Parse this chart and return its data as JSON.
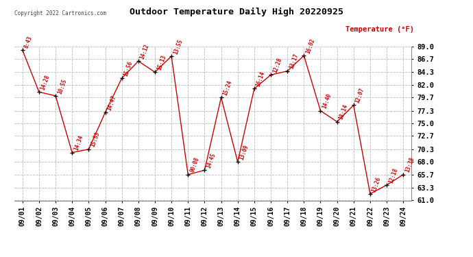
{
  "title": "Outdoor Temperature Daily High 20220925",
  "ylabel": "Temperature (°F)",
  "copyright": "Copyright 2022 Cartronics.com",
  "background_color": "#ffffff",
  "grid_color": "#bbbbbb",
  "line_color": "#cc0000",
  "marker_color": "#000000",
  "label_color": "#cc0000",
  "dates": [
    "09/01",
    "09/02",
    "09/03",
    "09/04",
    "09/05",
    "09/06",
    "09/07",
    "09/08",
    "09/09",
    "09/10",
    "09/11",
    "09/12",
    "09/13",
    "09/14",
    "09/15",
    "09/16",
    "09/17",
    "09/18",
    "09/19",
    "09/20",
    "09/21",
    "09/22",
    "09/23",
    "09/24"
  ],
  "temps": [
    88.3,
    80.7,
    80.0,
    69.7,
    70.3,
    77.0,
    83.2,
    86.3,
    84.3,
    87.2,
    65.7,
    66.5,
    79.7,
    68.0,
    81.3,
    83.8,
    84.5,
    87.3,
    77.3,
    75.3,
    78.3,
    62.2,
    63.8,
    65.7
  ],
  "time_labels": [
    "8:43",
    "14:28",
    "10:55",
    "14:34",
    "15:53",
    "14:47",
    "15:56",
    "14:12",
    "15:13",
    "13:55",
    "00:08",
    "14:45",
    "15:24",
    "13:09",
    "16:14",
    "12:28",
    "13:17",
    "16:02",
    "14:40",
    "18:14",
    "12:07",
    "13:26",
    "12:18",
    "13:38"
  ],
  "ylim_min": 61.0,
  "ylim_max": 89.0,
  "yticks": [
    61.0,
    63.3,
    65.7,
    68.0,
    70.3,
    72.7,
    75.0,
    77.3,
    79.7,
    82.0,
    84.3,
    86.7,
    89.0
  ]
}
